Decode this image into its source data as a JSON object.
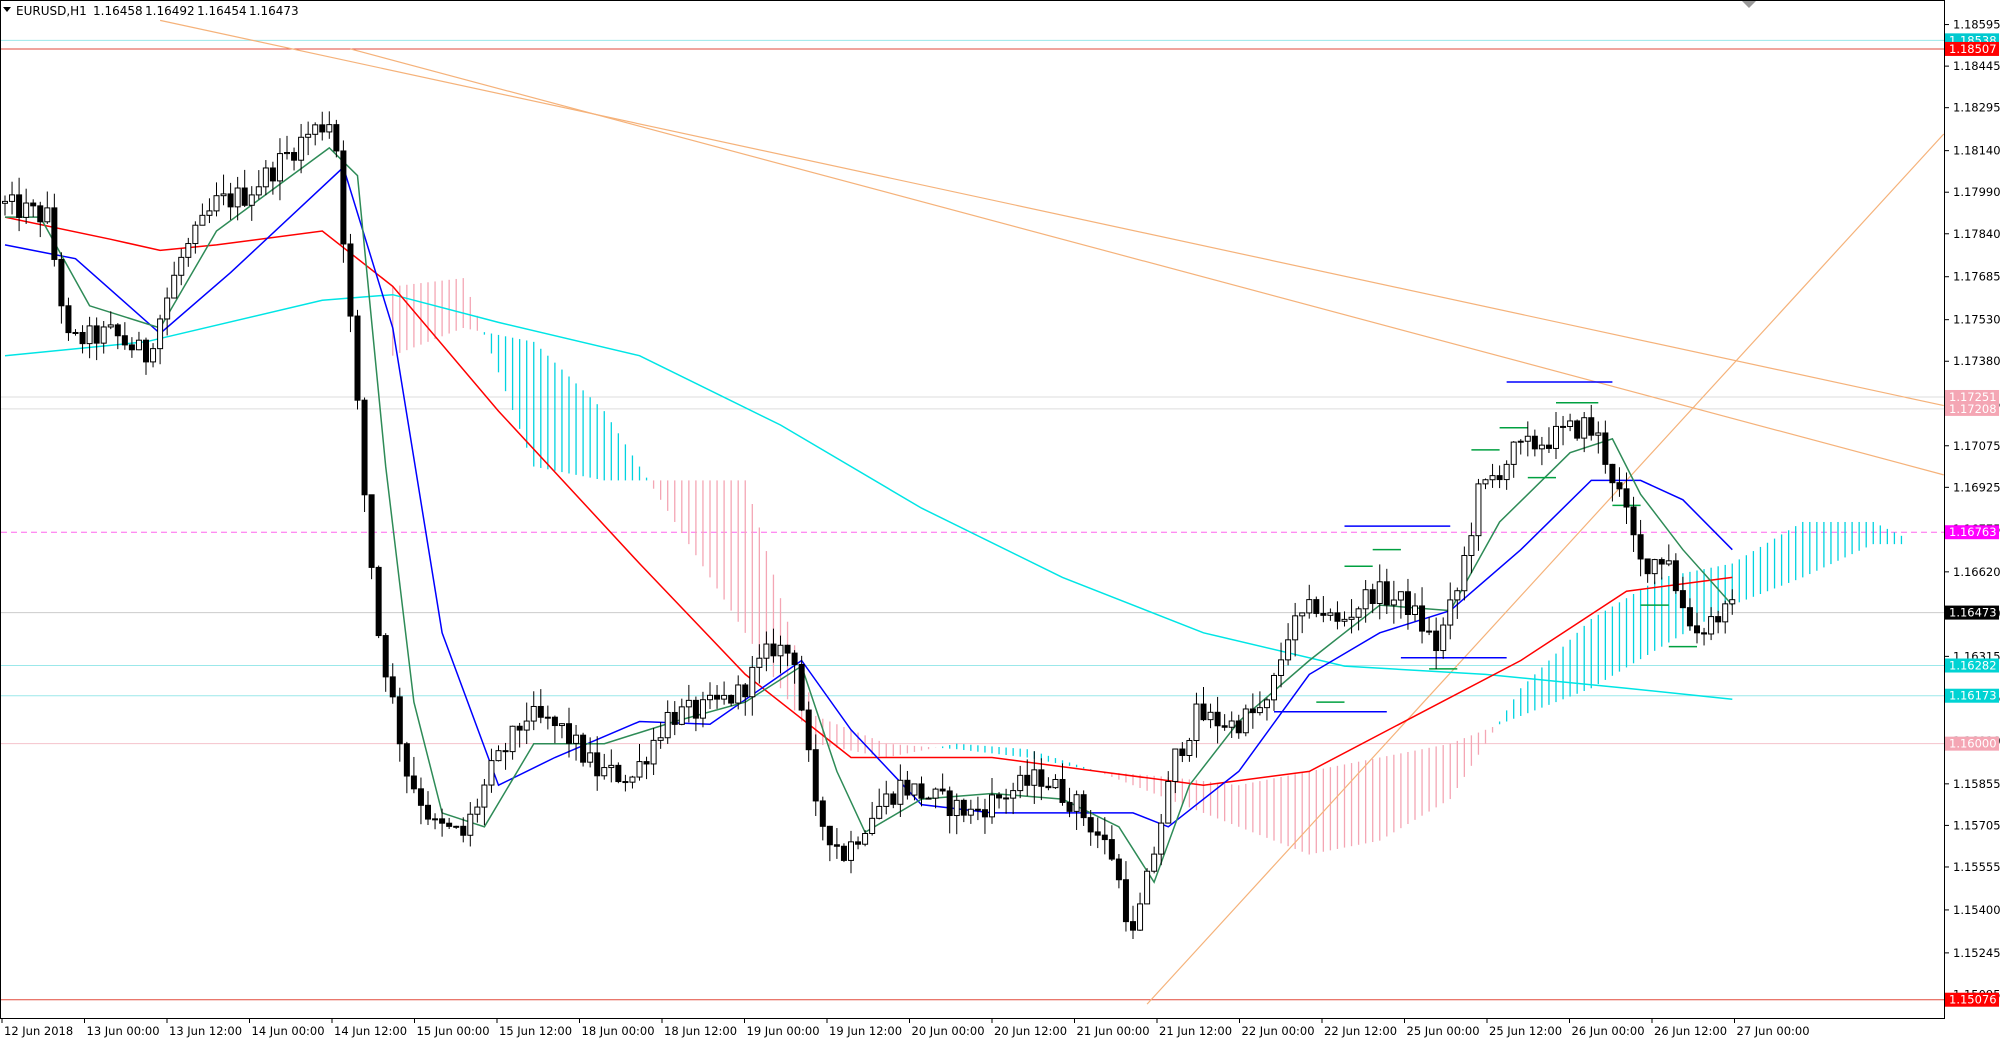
{
  "chart_data": {
    "type": "candlestick",
    "symbol": "EURUSD,H1",
    "ohlc": {
      "open": "1.16458",
      "high": "1.16492",
      "low": "1.16454",
      "close": "1.16473"
    },
    "y_ticks": [
      "1.18595",
      "1.18445",
      "1.18295",
      "1.18140",
      "1.17990",
      "1.17840",
      "1.17685",
      "1.17530",
      "1.17380",
      "1.17225",
      "1.17075",
      "1.16925",
      "1.16775",
      "1.16620",
      "1.16470",
      "1.16315",
      "1.16165",
      "1.16010",
      "1.15855",
      "1.15705",
      "1.15555",
      "1.15400",
      "1.15245",
      "1.15095"
    ],
    "x_ticks": [
      "12 Jun 2018",
      "13 Jun 00:00",
      "13 Jun 12:00",
      "14 Jun 00:00",
      "14 Jun 12:00",
      "15 Jun 00:00",
      "15 Jun 12:00",
      "18 Jun 00:00",
      "18 Jun 12:00",
      "19 Jun 00:00",
      "19 Jun 12:00",
      "20 Jun 00:00",
      "20 Jun 12:00",
      "21 Jun 00:00",
      "21 Jun 12:00",
      "22 Jun 00:00",
      "22 Jun 12:00",
      "25 Jun 00:00",
      "25 Jun 12:00",
      "26 Jun 00:00",
      "26 Jun 12:00",
      "27 Jun 00:00"
    ],
    "price_labels": [
      {
        "text": "1.18538",
        "value": 1.18538,
        "color": "#00c9cf"
      },
      {
        "text": "1.18507",
        "value": 1.18507,
        "color": "#ff0000"
      },
      {
        "text": "1.17251",
        "value": 1.17251,
        "color": "#f4a6b4"
      },
      {
        "text": "1.17208",
        "value": 1.17208,
        "color": "#f4a6b4"
      },
      {
        "text": "1.16763",
        "value": 1.16763,
        "color": "#ff00ff"
      },
      {
        "text": "1.16473",
        "value": 1.16473,
        "color": "#000000"
      },
      {
        "text": "1.16282",
        "value": 1.16282,
        "color": "#00d3d3"
      },
      {
        "text": "1.16173",
        "value": 1.16173,
        "color": "#00d3d3"
      },
      {
        "text": "1.16000",
        "value": 1.16,
        "color": "#f4a6b4"
      },
      {
        "text": "1.15076",
        "value": 1.15076,
        "color": "#ff0000"
      }
    ],
    "horizontal_lines": [
      {
        "value": 1.18538,
        "color": "#9be8ea"
      },
      {
        "value": 1.18507,
        "color": "#e24a3b"
      },
      {
        "value": 1.17251,
        "color": "#dddddd"
      },
      {
        "value": 1.17208,
        "color": "#dddddd"
      },
      {
        "value": 1.16763,
        "color": "#ff66ee",
        "dash": true
      },
      {
        "value": 1.16473,
        "color": "#cccccc"
      },
      {
        "value": 1.16282,
        "color": "#9be8ea"
      },
      {
        "value": 1.16173,
        "color": "#9be8ea"
      },
      {
        "value": 1.16,
        "color": "#f4c2cb"
      },
      {
        "value": 1.15076,
        "color": "#e24a3b"
      }
    ],
    "candle_count": 275,
    "anchors": [
      {
        "bar": 0,
        "price": 1.1795
      },
      {
        "bar": 7,
        "price": 1.179
      },
      {
        "bar": 10,
        "price": 1.1745
      },
      {
        "bar": 16,
        "price": 1.1748
      },
      {
        "bar": 21,
        "price": 1.174
      },
      {
        "bar": 26,
        "price": 1.1775
      },
      {
        "bar": 31,
        "price": 1.1795
      },
      {
        "bar": 35,
        "price": 1.1798
      },
      {
        "bar": 38,
        "price": 1.1805
      },
      {
        "bar": 44,
        "price": 1.182
      },
      {
        "bar": 47,
        "price": 1.1825
      },
      {
        "bar": 48,
        "price": 1.1815
      },
      {
        "bar": 52,
        "price": 1.169
      },
      {
        "bar": 54,
        "price": 1.164
      },
      {
        "bar": 58,
        "price": 1.159
      },
      {
        "bar": 62,
        "price": 1.157
      },
      {
        "bar": 66,
        "price": 1.1567
      },
      {
        "bar": 70,
        "price": 1.159
      },
      {
        "bar": 75,
        "price": 1.161
      },
      {
        "bar": 80,
        "price": 1.1605
      },
      {
        "bar": 85,
        "price": 1.159
      },
      {
        "bar": 90,
        "price": 1.1588
      },
      {
        "bar": 95,
        "price": 1.161
      },
      {
        "bar": 100,
        "price": 1.1612
      },
      {
        "bar": 105,
        "price": 1.1618
      },
      {
        "bar": 110,
        "price": 1.1635
      },
      {
        "bar": 113,
        "price": 1.1632
      },
      {
        "bar": 116,
        "price": 1.1575
      },
      {
        "bar": 120,
        "price": 1.156
      },
      {
        "bar": 124,
        "price": 1.1575
      },
      {
        "bar": 128,
        "price": 1.1585
      },
      {
        "bar": 133,
        "price": 1.158
      },
      {
        "bar": 138,
        "price": 1.1575
      },
      {
        "bar": 143,
        "price": 1.1582
      },
      {
        "bar": 148,
        "price": 1.1588
      },
      {
        "bar": 153,
        "price": 1.1578
      },
      {
        "bar": 158,
        "price": 1.156
      },
      {
        "bar": 161,
        "price": 1.153
      },
      {
        "bar": 163,
        "price": 1.155
      },
      {
        "bar": 167,
        "price": 1.1595
      },
      {
        "bar": 170,
        "price": 1.161
      },
      {
        "bar": 175,
        "price": 1.1607
      },
      {
        "bar": 180,
        "price": 1.1613
      },
      {
        "bar": 183,
        "price": 1.164
      },
      {
        "bar": 187,
        "price": 1.165
      },
      {
        "bar": 190,
        "price": 1.1643
      },
      {
        "bar": 195,
        "price": 1.1655
      },
      {
        "bar": 200,
        "price": 1.165
      },
      {
        "bar": 204,
        "price": 1.1635
      },
      {
        "bar": 207,
        "price": 1.1655
      },
      {
        "bar": 210,
        "price": 1.169
      },
      {
        "bar": 215,
        "price": 1.1705
      },
      {
        "bar": 220,
        "price": 1.171
      },
      {
        "bar": 225,
        "price": 1.1715
      },
      {
        "bar": 227,
        "price": 1.171
      },
      {
        "bar": 230,
        "price": 1.169
      },
      {
        "bar": 233,
        "price": 1.1665
      },
      {
        "bar": 237,
        "price": 1.1668
      },
      {
        "bar": 238,
        "price": 1.1655
      },
      {
        "bar": 241,
        "price": 1.164
      },
      {
        "bar": 243,
        "price": 1.1645
      },
      {
        "bar": 245,
        "price": 1.1647
      }
    ],
    "ma_lines": [
      {
        "name": "",
        "color": "#00e5e5",
        "points": [
          [
            0,
            1.174
          ],
          [
            20,
            1.1745
          ],
          [
            45,
            1.176
          ],
          [
            55,
            1.1762
          ],
          [
            70,
            1.1752
          ],
          [
            90,
            1.174
          ],
          [
            110,
            1.1715
          ],
          [
            130,
            1.1685
          ],
          [
            150,
            1.166
          ],
          [
            170,
            1.164
          ],
          [
            190,
            1.1628
          ],
          [
            210,
            1.1625
          ],
          [
            230,
            1.162
          ],
          [
            245,
            1.1616
          ]
        ]
      },
      {
        "name": "",
        "color": "#ff0000",
        "points": [
          [
            0,
            1.179
          ],
          [
            15,
            1.1782
          ],
          [
            22,
            1.1778
          ],
          [
            30,
            1.178
          ],
          [
            45,
            1.1785
          ],
          [
            55,
            1.1765
          ],
          [
            70,
            1.172
          ],
          [
            90,
            1.1665
          ],
          [
            105,
            1.1625
          ],
          [
            120,
            1.1595
          ],
          [
            140,
            1.1595
          ],
          [
            155,
            1.159
          ],
          [
            170,
            1.1585
          ],
          [
            185,
            1.159
          ],
          [
            200,
            1.161
          ],
          [
            215,
            1.163
          ],
          [
            230,
            1.1655
          ],
          [
            245,
            1.166
          ]
        ]
      },
      {
        "name": "",
        "color": "#0000ff",
        "points": [
          [
            0,
            1.178
          ],
          [
            10,
            1.1775
          ],
          [
            22,
            1.1748
          ],
          [
            32,
            1.177
          ],
          [
            48,
            1.1808
          ],
          [
            55,
            1.175
          ],
          [
            62,
            1.164
          ],
          [
            70,
            1.1585
          ],
          [
            78,
            1.1595
          ],
          [
            90,
            1.1608
          ],
          [
            100,
            1.1607
          ],
          [
            113,
            1.163
          ],
          [
            120,
            1.1605
          ],
          [
            130,
            1.1578
          ],
          [
            140,
            1.1575
          ],
          [
            150,
            1.1575
          ],
          [
            160,
            1.1575
          ],
          [
            165,
            1.157
          ],
          [
            175,
            1.159
          ],
          [
            185,
            1.1625
          ],
          [
            195,
            1.164
          ],
          [
            205,
            1.1648
          ],
          [
            215,
            1.167
          ],
          [
            225,
            1.1695
          ],
          [
            232,
            1.1695
          ],
          [
            238,
            1.1688
          ],
          [
            245,
            1.167
          ]
        ]
      },
      {
        "name": "",
        "color": "#2e8b57",
        "points": [
          [
            0,
            1.179
          ],
          [
            5,
            1.179
          ],
          [
            12,
            1.1758
          ],
          [
            22,
            1.175
          ],
          [
            30,
            1.1785
          ],
          [
            38,
            1.18
          ],
          [
            46,
            1.1815
          ],
          [
            50,
            1.1805
          ],
          [
            54,
            1.17
          ],
          [
            58,
            1.1615
          ],
          [
            62,
            1.1575
          ],
          [
            68,
            1.157
          ],
          [
            75,
            1.16
          ],
          [
            85,
            1.16
          ],
          [
            95,
            1.1608
          ],
          [
            105,
            1.1615
          ],
          [
            113,
            1.1628
          ],
          [
            118,
            1.159
          ],
          [
            122,
            1.1568
          ],
          [
            130,
            1.158
          ],
          [
            140,
            1.1582
          ],
          [
            150,
            1.158
          ],
          [
            158,
            1.157
          ],
          [
            163,
            1.155
          ],
          [
            168,
            1.1585
          ],
          [
            175,
            1.1608
          ],
          [
            185,
            1.163
          ],
          [
            195,
            1.165
          ],
          [
            205,
            1.1648
          ],
          [
            212,
            1.168
          ],
          [
            222,
            1.1705
          ],
          [
            228,
            1.171
          ],
          [
            232,
            1.169
          ],
          [
            238,
            1.167
          ],
          [
            245,
            1.165
          ]
        ]
      }
    ],
    "ichimoku": {
      "start": 55,
      "end": 269,
      "span_a": [
        [
          55,
          1.174
        ],
        [
          65,
          1.175
        ],
        [
          75,
          1.1745
        ],
        [
          85,
          1.172
        ],
        [
          95,
          1.168
        ],
        [
          105,
          1.164
        ],
        [
          115,
          1.16
        ],
        [
          125,
          1.1595
        ],
        [
          135,
          1.16
        ],
        [
          145,
          1.1598
        ],
        [
          155,
          1.159
        ],
        [
          165,
          1.158
        ],
        [
          175,
          1.157
        ],
        [
          185,
          1.156
        ],
        [
          195,
          1.1565
        ],
        [
          205,
          1.158
        ],
        [
          215,
          1.162
        ],
        [
          225,
          1.1645
        ],
        [
          235,
          1.166
        ],
        [
          245,
          1.1665
        ],
        [
          255,
          1.168
        ],
        [
          265,
          1.168
        ],
        [
          269,
          1.1675
        ]
      ],
      "span_b": [
        [
          55,
          1.1765
        ],
        [
          65,
          1.1768
        ],
        [
          75,
          1.17
        ],
        [
          85,
          1.1695
        ],
        [
          95,
          1.1695
        ],
        [
          105,
          1.1695
        ],
        [
          115,
          1.161
        ],
        [
          125,
          1.16
        ],
        [
          135,
          1.1598
        ],
        [
          145,
          1.1595
        ],
        [
          155,
          1.159
        ],
        [
          165,
          1.1588
        ],
        [
          175,
          1.1585
        ],
        [
          185,
          1.159
        ],
        [
          195,
          1.1595
        ],
        [
          205,
          1.16
        ],
        [
          215,
          1.161
        ],
        [
          225,
          1.162
        ],
        [
          235,
          1.1635
        ],
        [
          245,
          1.165
        ],
        [
          255,
          1.166
        ],
        [
          265,
          1.1672
        ],
        [
          269,
          1.1672
        ]
      ],
      "bull_color": "#00d3e0",
      "bear_color": "#f4a6b4"
    },
    "trendlines": [
      {
        "from": [
          22,
          1.1861
        ],
        "to": [
          275,
          1.1722
        ],
        "color": "#f5b27a"
      },
      {
        "from": [
          49,
          1.18507
        ],
        "to": [
          275,
          1.1697
        ],
        "color": "#f5b27a"
      },
      {
        "from": [
          162,
          1.1506
        ],
        "to": [
          275,
          1.182
        ],
        "color": "#f5b27a"
      }
    ],
    "levels": [
      {
        "bar1": 213,
        "bar2": 228,
        "price": 1.17305,
        "color": "#0000ff"
      },
      {
        "bar1": 190,
        "bar2": 205,
        "price": 1.16785,
        "color": "#0000ff"
      },
      {
        "bar1": 198,
        "bar2": 213,
        "price": 1.1631,
        "color": "#0000ff"
      },
      {
        "bar1": 180,
        "bar2": 196,
        "price": 1.16115,
        "color": "#0000ff"
      },
      {
        "bar1": 220,
        "bar2": 226,
        "price": 1.1723,
        "color": "#00a040"
      },
      {
        "bar1": 212,
        "bar2": 216,
        "price": 1.1714,
        "color": "#00a040"
      },
      {
        "bar1": 208,
        "bar2": 212,
        "price": 1.1706,
        "color": "#00a040"
      },
      {
        "bar1": 216,
        "bar2": 220,
        "price": 1.1696,
        "color": "#00a040"
      },
      {
        "bar1": 228,
        "bar2": 232,
        "price": 1.1686,
        "color": "#00a040"
      },
      {
        "bar1": 194,
        "bar2": 198,
        "price": 1.167,
        "color": "#00a040"
      },
      {
        "bar1": 190,
        "bar2": 194,
        "price": 1.1664,
        "color": "#00a040"
      },
      {
        "bar1": 232,
        "bar2": 236,
        "price": 1.165,
        "color": "#00a040"
      },
      {
        "bar1": 236,
        "bar2": 240,
        "price": 1.1635,
        "color": "#00a040"
      },
      {
        "bar1": 186,
        "bar2": 190,
        "price": 1.1615,
        "color": "#00a040"
      },
      {
        "bar1": 202,
        "bar2": 206,
        "price": 1.1627,
        "color": "#00a040"
      }
    ],
    "y_range": [
      1.1501,
      1.1868
    ],
    "grid": false
  }
}
